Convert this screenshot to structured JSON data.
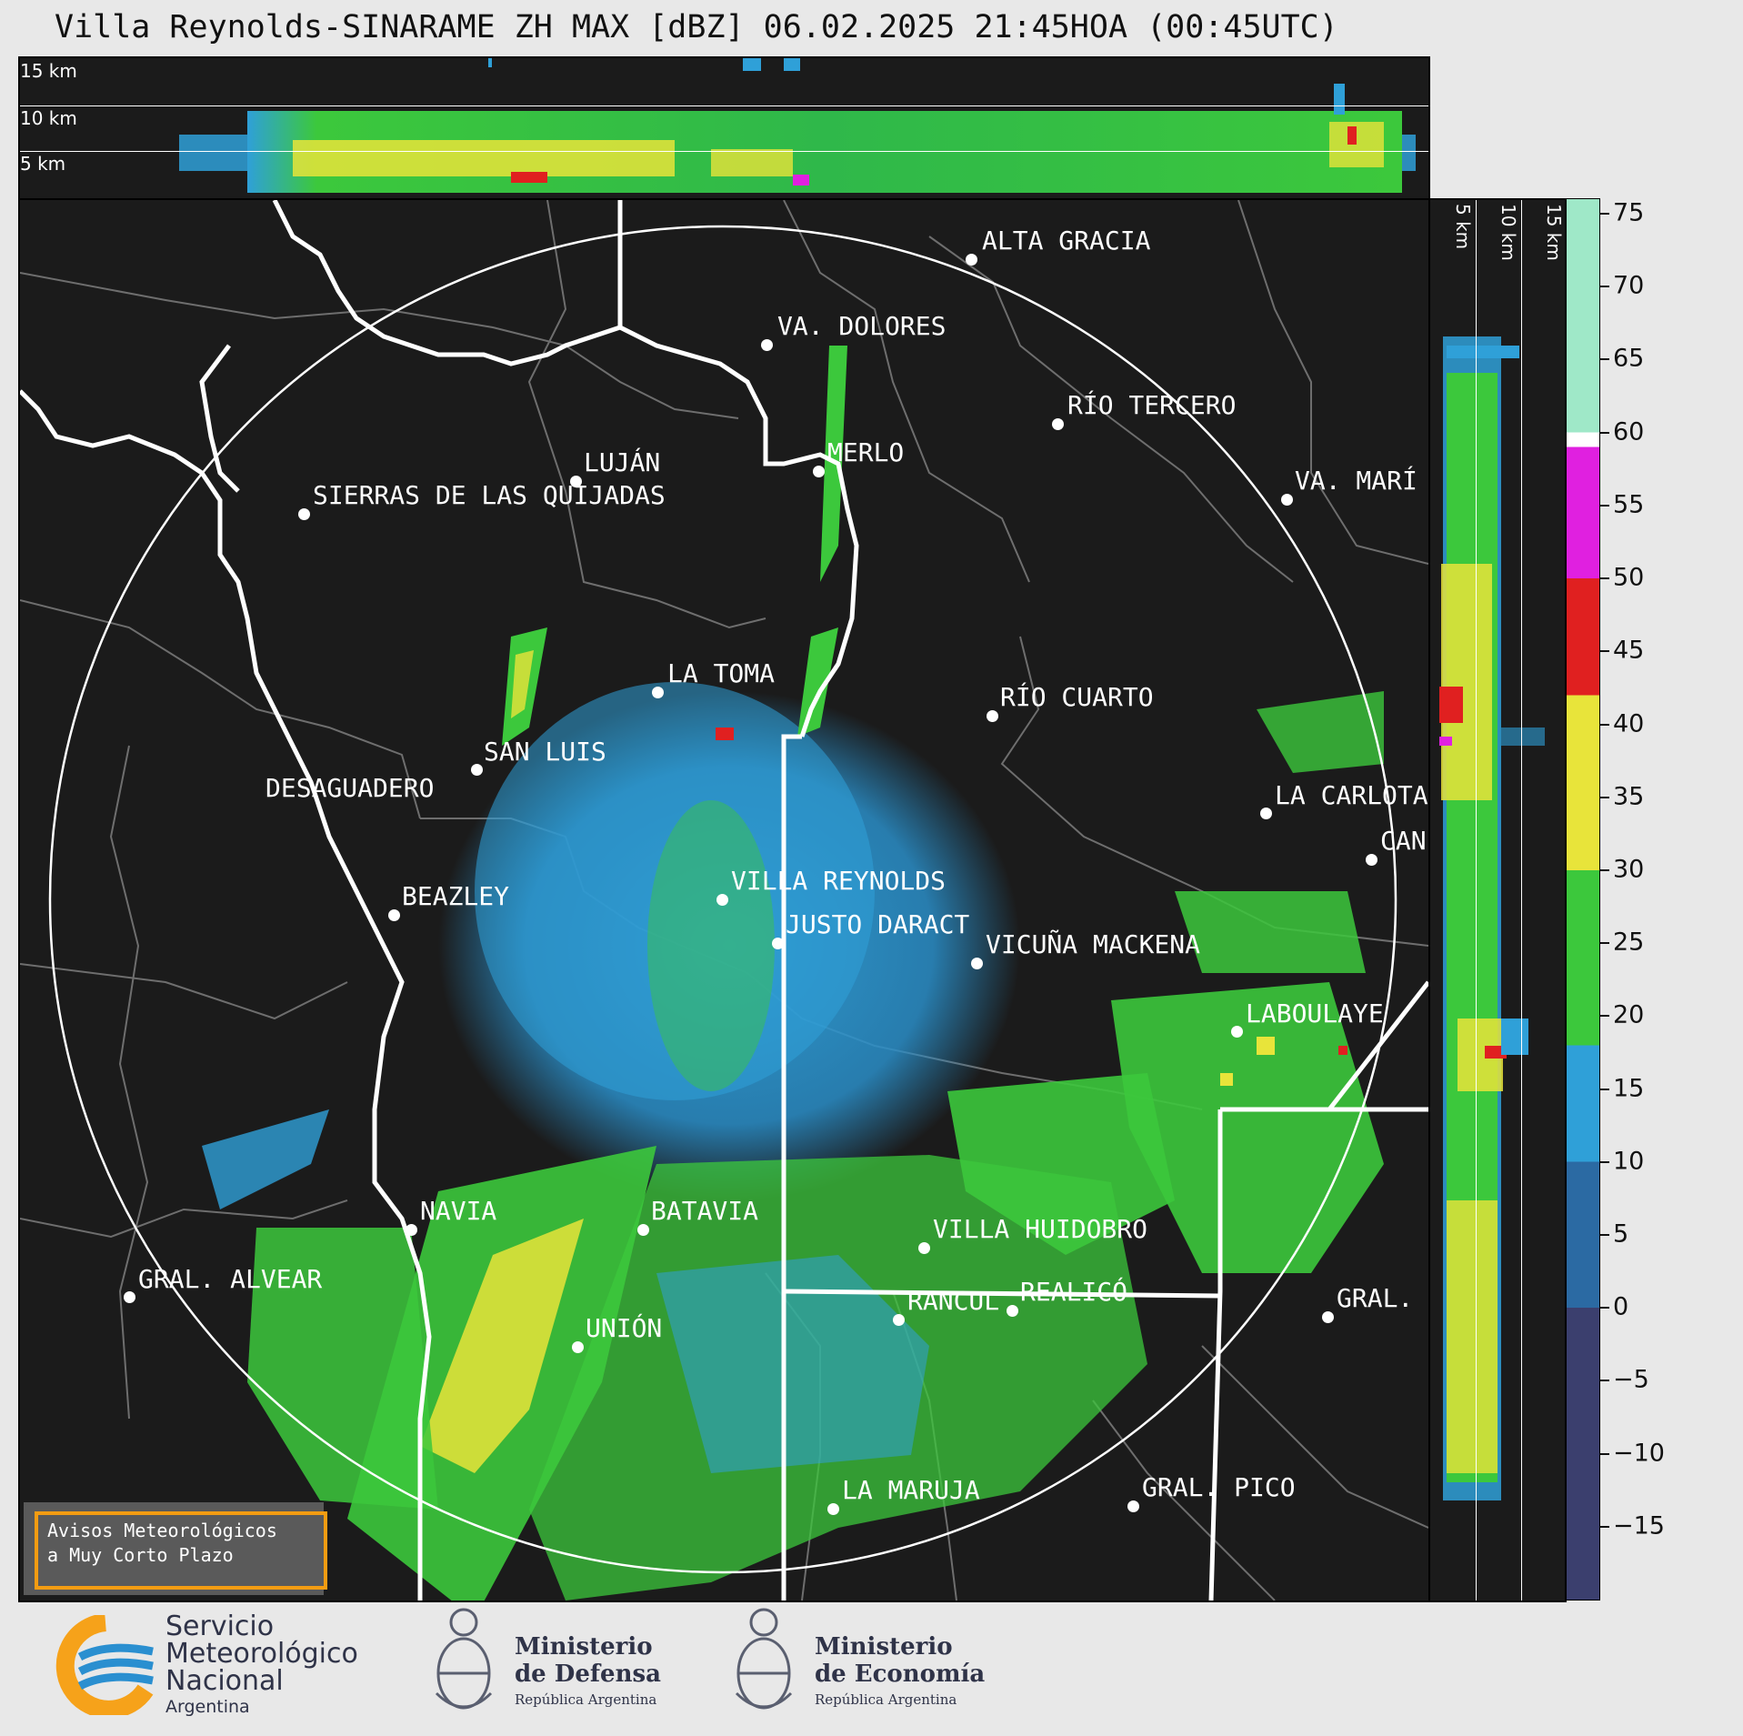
{
  "title": "Villa Reynolds-SINARAME ZH MAX [dBZ] 06.02.2025 21:45HOA (00:45UTC)",
  "altitude_labels": {
    "top": [
      "15 km",
      "10 km",
      "5 km"
    ],
    "side": [
      "5 km",
      "10 km",
      "15 km"
    ]
  },
  "cities": [
    {
      "name": "ALTA GRACIA"
    },
    {
      "name": "VA. DOLORES"
    },
    {
      "name": "RÍO TERCERO"
    },
    {
      "name": "MERLO"
    },
    {
      "name": "LUJÁN"
    },
    {
      "name": "SIERRAS DE LAS QUIJADAS"
    },
    {
      "name": "VA. MARÍ"
    },
    {
      "name": "LA TOMA"
    },
    {
      "name": "RÍO CUARTO"
    },
    {
      "name": "SAN LUIS"
    },
    {
      "name": "DESAGUADERO"
    },
    {
      "name": "LA CARLOTA"
    },
    {
      "name": "CAN"
    },
    {
      "name": "BEAZLEY"
    },
    {
      "name": "VILLA REYNOLDS"
    },
    {
      "name": "JUSTO DARACT"
    },
    {
      "name": "VICUÑA MACKENA"
    },
    {
      "name": "LABOULAYE"
    },
    {
      "name": "NAVIA"
    },
    {
      "name": "BATAVIA"
    },
    {
      "name": "VILLA HUIDOBRO"
    },
    {
      "name": "GRAL. ALVEAR"
    },
    {
      "name": "RANCUL"
    },
    {
      "name": "REALICÓ"
    },
    {
      "name": "GRAL."
    },
    {
      "name": "UNIÓN"
    },
    {
      "name": "LA MARUJA"
    },
    {
      "name": "GRAL. PICO"
    }
  ],
  "colorbar": {
    "unit": "dBZ",
    "ticks": [
      "75",
      "70",
      "65",
      "60",
      "55",
      "50",
      "45",
      "40",
      "35",
      "30",
      "25",
      "20",
      "15",
      "10",
      "5",
      "0",
      "−5",
      "−10",
      "−15"
    ],
    "range": [
      -20,
      76
    ],
    "stops": [
      {
        "from": -20,
        "to": 0,
        "color": "#3b3f6e"
      },
      {
        "from": 0,
        "to": 10,
        "color": "#2b6aa3"
      },
      {
        "from": 10,
        "to": 18,
        "color": "#2fa0d8"
      },
      {
        "from": 18,
        "to": 30,
        "color": "#3cc83c"
      },
      {
        "from": 30,
        "to": 42,
        "color": "#e8e43a"
      },
      {
        "from": 42,
        "to": 50,
        "color": "#e02020"
      },
      {
        "from": 50,
        "to": 59,
        "color": "#e020e0"
      },
      {
        "from": 59,
        "to": 60,
        "color": "#ffffff"
      },
      {
        "from": 60,
        "to": 76,
        "color": "#9fe8c8"
      }
    ]
  },
  "warning": {
    "line1": "Avisos Meteorológicos",
    "line2": "a Muy Corto Plazo"
  },
  "logos": {
    "smn": {
      "line1": "Servicio",
      "line2": "Meteorológico",
      "line3": "Nacional",
      "line4": "Argentina"
    },
    "defensa": {
      "line1": "Ministerio",
      "line2": "de Defensa",
      "line3": "República Argentina"
    },
    "economia": {
      "line1": "Ministerio",
      "line2": "de Economía",
      "line3": "República Argentina"
    }
  },
  "colors": {
    "background": "#e8e8e8",
    "panel": "#1b1b1b",
    "accent_orange": "#f39c12",
    "smn_blue": "#2a8fd0",
    "smn_orange": "#f6a21a"
  }
}
